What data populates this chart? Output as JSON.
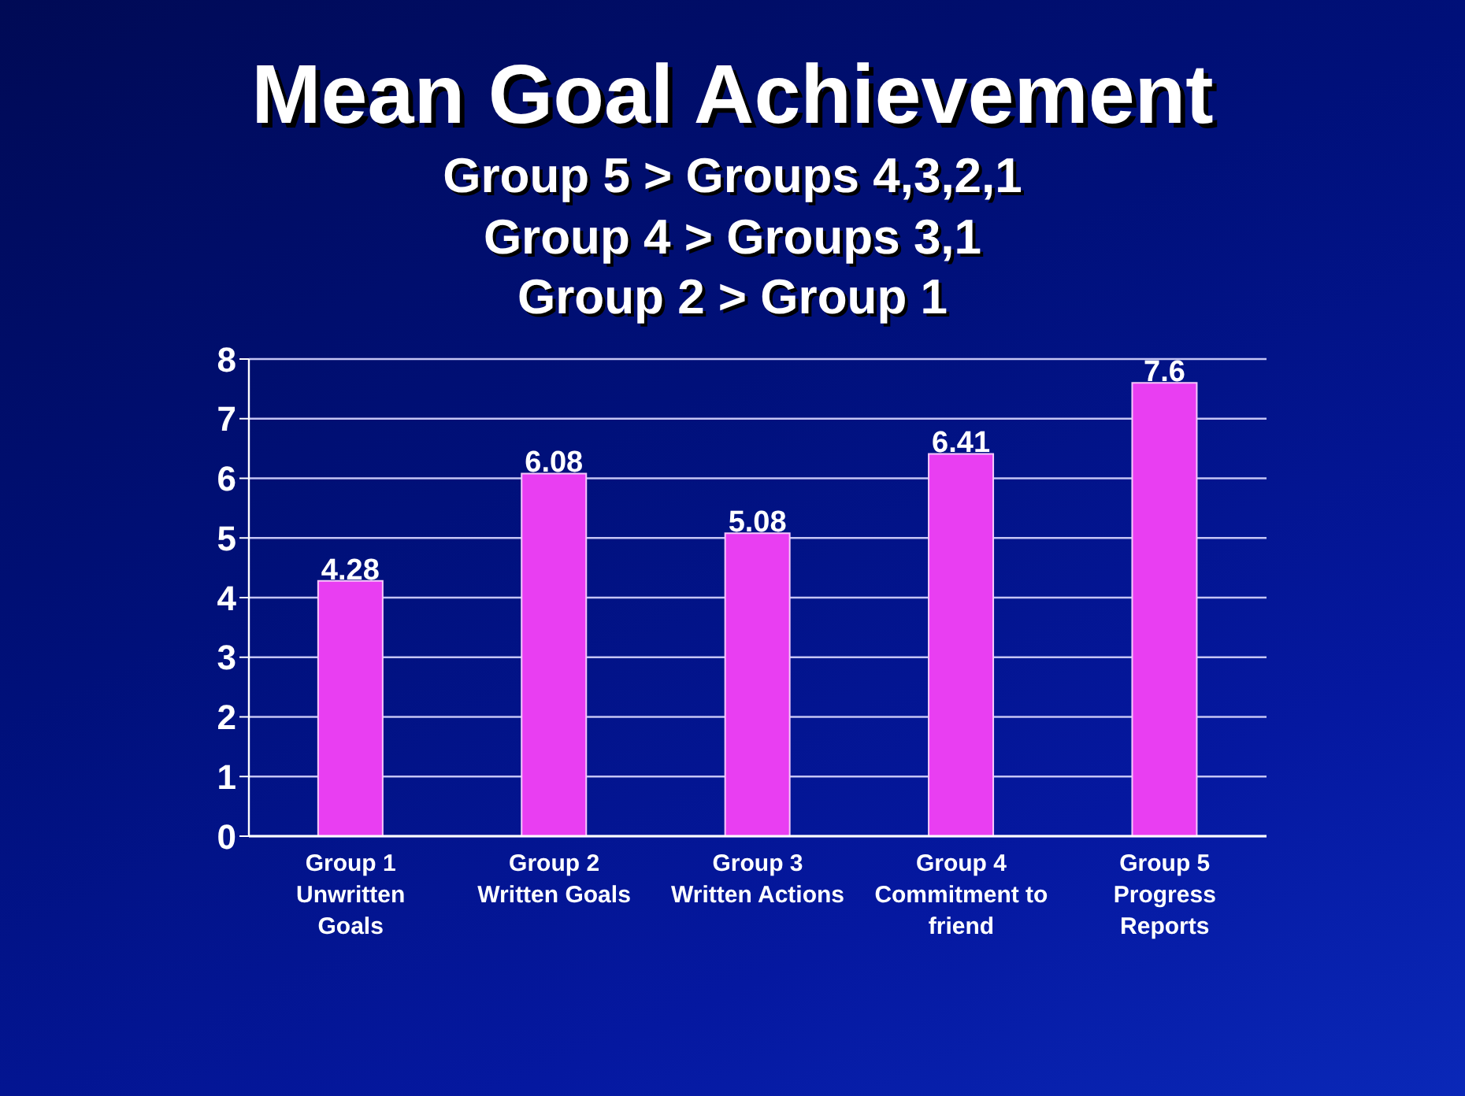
{
  "chart_data": {
    "type": "bar",
    "title": "Mean Goal Achievement",
    "subtitle": "Group 5 > Groups 4,3,2,1\nGroup 4 > Groups 3,1\nGroup 2 > Group 1",
    "categories": [
      "Group 1\nUnwritten\nGoals",
      "Group 2\nWritten Goals",
      "Group 3\nWritten Actions",
      "Group 4\nCommitment to\nfriend",
      "Group 5\nProgress\nReports"
    ],
    "values": [
      4.28,
      6.08,
      5.08,
      6.41,
      7.6
    ],
    "color": "#e93ef2",
    "ylim": [
      0,
      8
    ],
    "yticks": [
      0,
      1,
      2,
      3,
      4,
      5,
      6,
      7,
      8
    ],
    "grid": "y",
    "data_labels": true
  }
}
